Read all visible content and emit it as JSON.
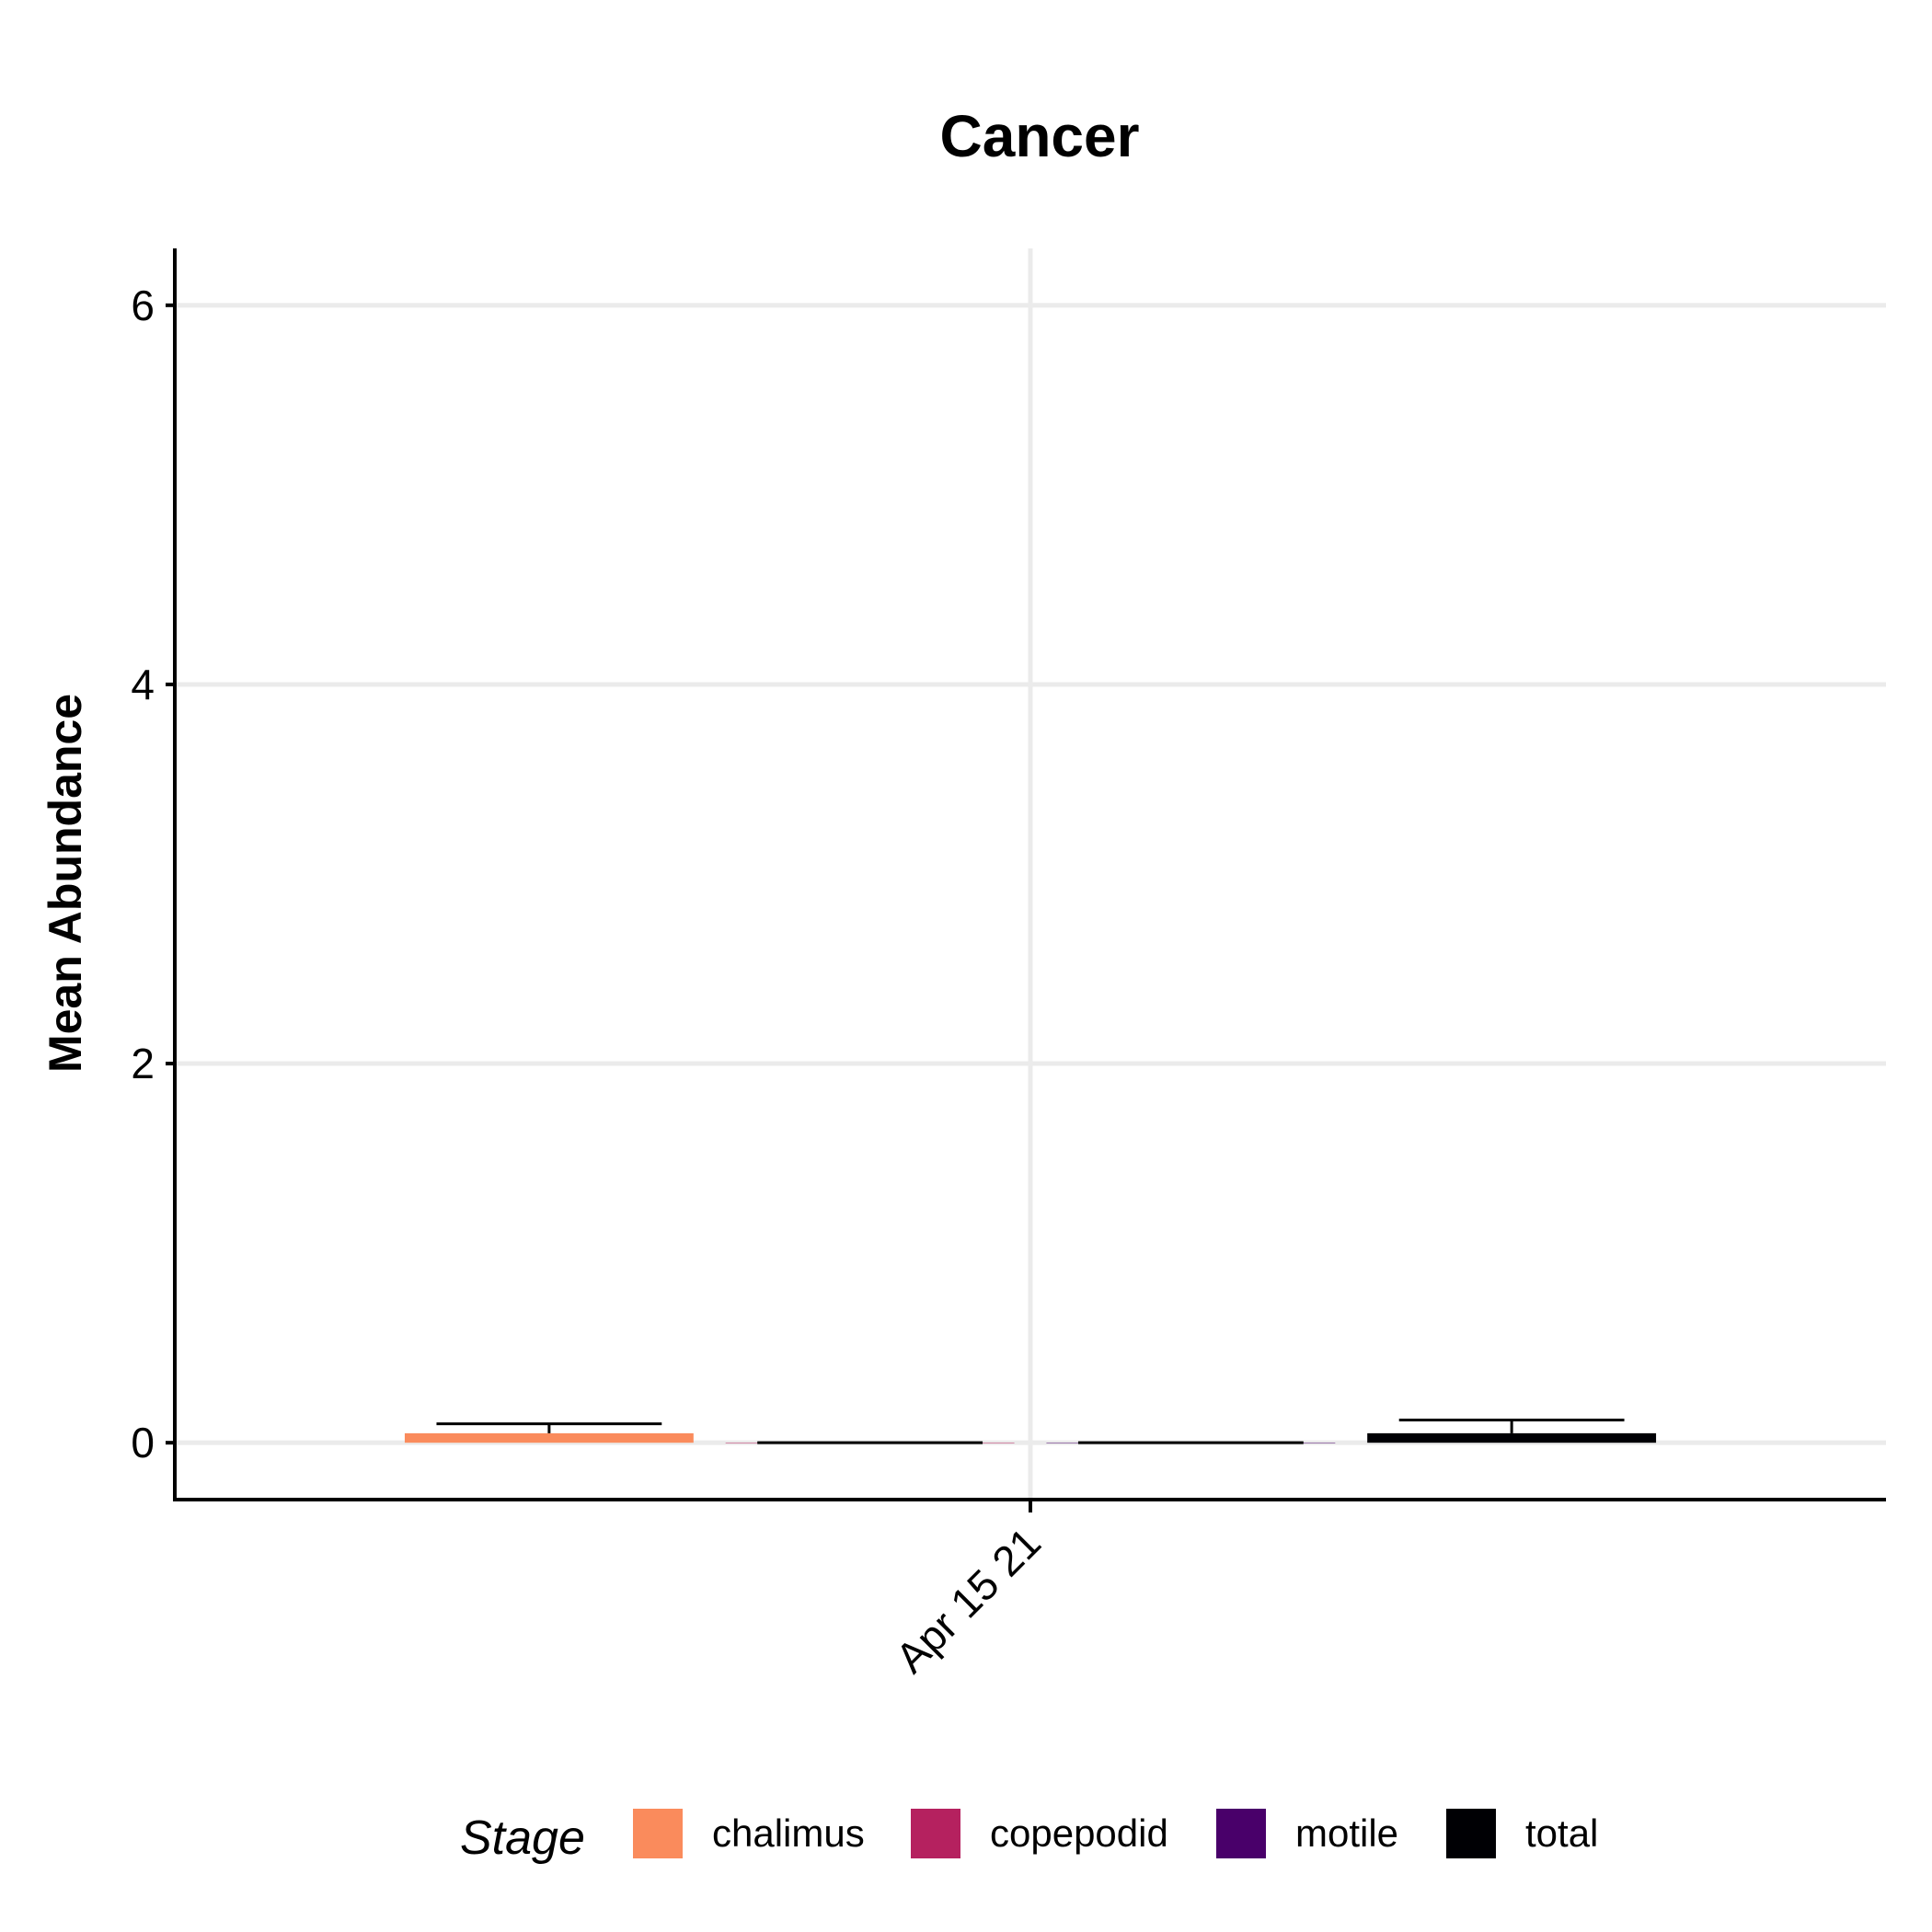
{
  "chart_data": {
    "type": "bar",
    "title": "Cancer",
    "xlabel": "",
    "ylabel": "Mean Abundance",
    "categories": [
      "Apr 15 21"
    ],
    "ylim": [
      -0.3,
      6.3
    ],
    "yticks": [
      0,
      2,
      4,
      6
    ],
    "grid": true,
    "legend": {
      "title": "Stage",
      "position": "bottom"
    },
    "series": [
      {
        "name": "chalimus",
        "color": "#FA8B5C",
        "values": [
          0.05
        ],
        "error": [
          0.05
        ]
      },
      {
        "name": "copepodid",
        "color": "#B5215F",
        "values": [
          0.0
        ],
        "error": [
          0.0
        ]
      },
      {
        "name": "motile",
        "color": "#49006A",
        "values": [
          0.0
        ],
        "error": [
          0.0
        ]
      },
      {
        "name": "total",
        "color": "#000004",
        "values": [
          0.05
        ],
        "error": [
          0.07
        ]
      }
    ]
  }
}
